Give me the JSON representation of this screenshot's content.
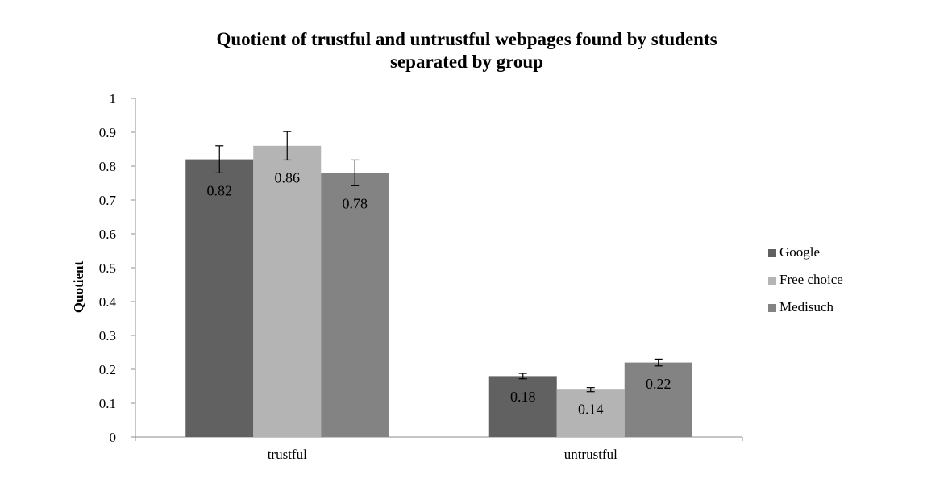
{
  "chart_data": {
    "type": "bar",
    "title": "Quotient of trustful and untrustful webpages found by students separated by group",
    "title_lines": [
      "Quotient of trustful and untrustful webpages found by students",
      "separated by group"
    ],
    "xlabel": "",
    "ylabel": "Quotient",
    "ylim": [
      0,
      1
    ],
    "yticks": [
      "0",
      "0.1",
      "0.2",
      "0.3",
      "0.4",
      "0.5",
      "0.6",
      "0.7",
      "0.8",
      "0.9",
      "1"
    ],
    "categories": [
      "trustful",
      "untrustful"
    ],
    "series": [
      {
        "name": "Google",
        "color": "#616161",
        "values": [
          0.82,
          0.18
        ],
        "labels": [
          "0.82",
          "0.18"
        ],
        "errors": [
          0.04,
          0.008
        ]
      },
      {
        "name": "Free choice",
        "color": "#b4b4b4",
        "values": [
          0.86,
          0.14
        ],
        "labels": [
          "0.86",
          "0.14"
        ],
        "errors": [
          0.042,
          0.006
        ]
      },
      {
        "name": "Medisuch",
        "color": "#838383",
        "values": [
          0.78,
          0.22
        ],
        "labels": [
          "0.78",
          "0.22"
        ],
        "errors": [
          0.038,
          0.01
        ]
      }
    ],
    "grid": false,
    "legend_position": "right"
  }
}
